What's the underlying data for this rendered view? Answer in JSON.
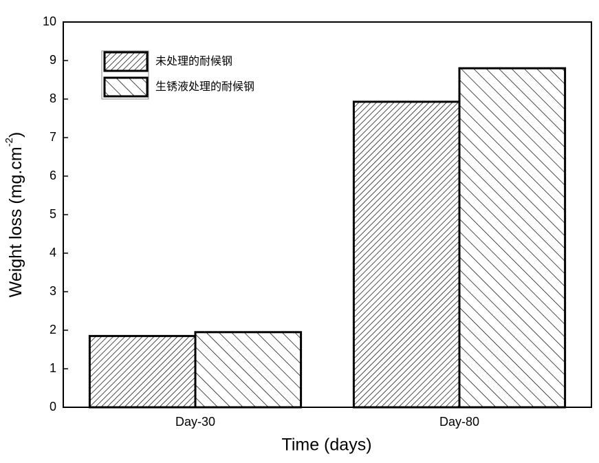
{
  "chart_data": {
    "type": "bar",
    "xlabel": "Time (days)",
    "ylabel": {
      "text": "Weight loss (mg.cm",
      "superscript": "-2",
      "suffix": ")"
    },
    "categories": [
      "Day-30",
      "Day-80"
    ],
    "series": [
      {
        "name": "未处理的耐候钢",
        "color": "#000000",
        "hatch": "/",
        "values": [
          1.85,
          7.93
        ]
      },
      {
        "name": "生锈液处理的耐候钢",
        "color": "#000000",
        "hatch": "\\",
        "values": [
          1.95,
          8.8
        ]
      }
    ],
    "ylim": [
      0,
      10
    ],
    "yticks": [
      0,
      1,
      2,
      3,
      4,
      5,
      6,
      7,
      8,
      9,
      10
    ],
    "legend": "upper left"
  }
}
